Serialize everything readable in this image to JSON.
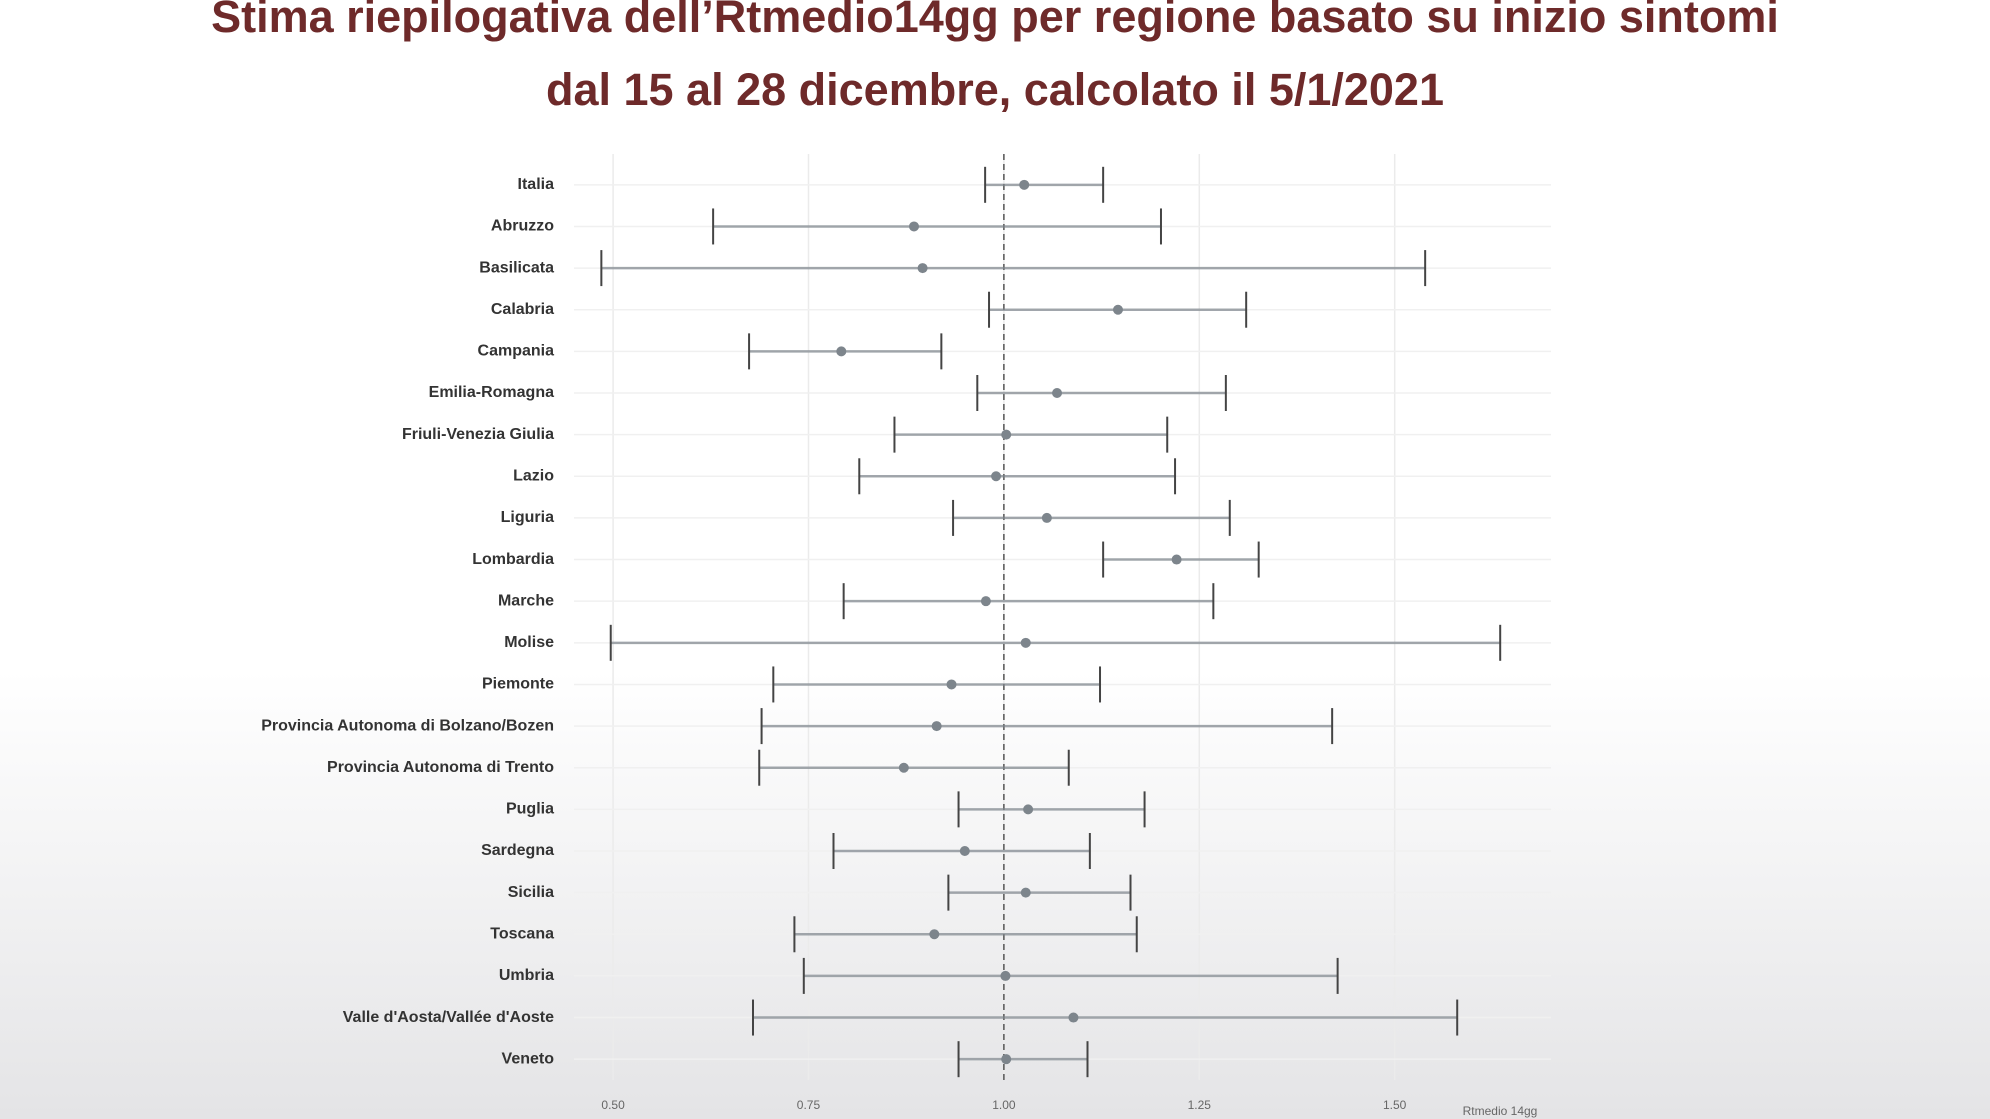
{
  "chart_data": {
    "type": "forest",
    "title": "Stima riepilogativa dell’Rtmedio14gg per regione basato su inizio sintomi",
    "subtitle": "dal 15 al 28 dicembre, calcolato il 5/1/2021",
    "x_label": "Rtmedio 14gg",
    "categories": [
      "Italia",
      "Abruzzo",
      "Basilicata",
      "Calabria",
      "Campania",
      "Emilia-Romagna",
      "Friuli-Venezia Giulia",
      "Lazio",
      "Liguria",
      "Lombardia",
      "Marche",
      "Molise",
      "Piemonte",
      "Provincia Autonoma di Bolzano/Bozen",
      "Provincia Autonoma di Trento",
      "Puglia",
      "Sardegna",
      "Sicilia",
      "Toscana",
      "Umbria",
      "Valle d'Aosta/Vallée d'Aoste",
      "Veneto"
    ],
    "values": [
      1.026,
      0.885,
      0.896,
      1.146,
      0.792,
      1.068,
      1.003,
      0.99,
      1.055,
      1.221,
      0.977,
      1.028,
      0.933,
      0.914,
      0.872,
      1.031,
      0.95,
      1.028,
      0.911,
      1.002,
      1.089,
      1.003
    ],
    "lower": [
      0.976,
      0.628,
      0.485,
      0.981,
      0.674,
      0.966,
      0.86,
      0.815,
      0.935,
      1.127,
      0.795,
      0.497,
      0.705,
      0.69,
      0.687,
      0.942,
      0.782,
      0.929,
      0.732,
      0.744,
      0.679,
      0.942
    ],
    "upper": [
      1.127,
      1.201,
      1.539,
      1.31,
      0.92,
      1.284,
      1.209,
      1.219,
      1.289,
      1.326,
      1.268,
      1.635,
      1.123,
      1.42,
      1.083,
      1.18,
      1.11,
      1.162,
      1.17,
      1.427,
      1.58,
      1.107
    ],
    "color": "#7d858c",
    "xlim": [
      0.45,
      1.7
    ],
    "xticks": [
      {
        "value": 0.5,
        "label": "0.50"
      },
      {
        "value": 0.75,
        "label": "0.75"
      },
      {
        "value": 1,
        "label": "1.00"
      },
      {
        "value": 1.25,
        "label": "1.25"
      },
      {
        "value": 1.5,
        "label": "1.50"
      }
    ],
    "reference_line": 1,
    "grid": true
  }
}
